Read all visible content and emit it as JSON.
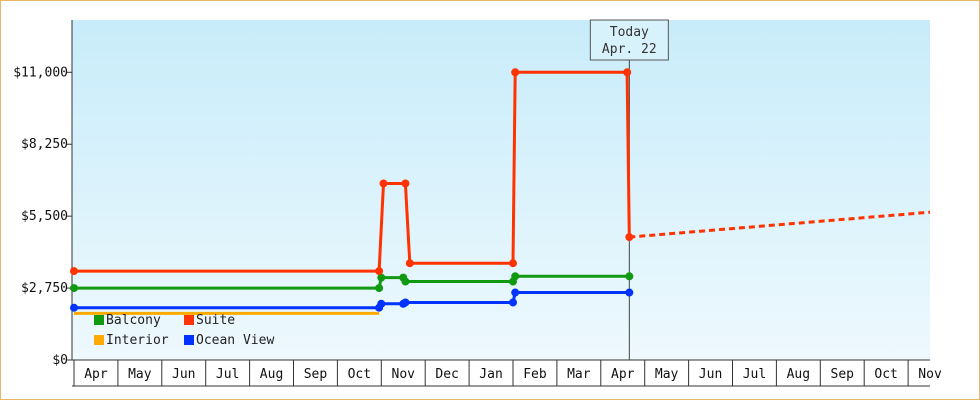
{
  "chart_data": {
    "type": "line",
    "title": "",
    "xlabel": "",
    "ylabel": "",
    "ylim": [
      0,
      13000
    ],
    "yticks": [
      {
        "value": 0,
        "label": "$0"
      },
      {
        "value": 2750,
        "label": "$2,750"
      },
      {
        "value": 5500,
        "label": "$5,500"
      },
      {
        "value": 8250,
        "label": "$8,250"
      },
      {
        "value": 11000,
        "label": "$11,000"
      }
    ],
    "xlim": [
      0,
      19.5
    ],
    "months": [
      "Apr",
      "May",
      "Jun",
      "Jul",
      "Aug",
      "Sep",
      "Oct",
      "Nov",
      "Dec",
      "Jan",
      "Feb",
      "Mar",
      "Apr",
      "May",
      "Jun",
      "Jul",
      "Aug",
      "Sep",
      "Oct",
      "Nov"
    ],
    "today": {
      "line1": "Today",
      "line2": "Apr. 22",
      "x": 12.65
    },
    "grid": false,
    "legend_position": "bottom-left",
    "series": [
      {
        "name": "Balcony",
        "color": "#119911",
        "points": [
          [
            0,
            2750
          ],
          [
            6.95,
            2750
          ],
          [
            7.0,
            3150
          ],
          [
            7.5,
            3150
          ],
          [
            7.55,
            3000
          ],
          [
            10.0,
            3000
          ],
          [
            10.05,
            3200
          ],
          [
            12.65,
            3200
          ]
        ],
        "markers": [
          [
            0,
            2750
          ],
          [
            6.95,
            2750
          ],
          [
            7.0,
            3150
          ],
          [
            7.5,
            3150
          ],
          [
            7.55,
            3000
          ],
          [
            10.0,
            3000
          ],
          [
            10.05,
            3200
          ],
          [
            12.65,
            3200
          ]
        ]
      },
      {
        "name": "Suite",
        "color": "#ff3300",
        "points": [
          [
            0,
            3400
          ],
          [
            6.95,
            3400
          ],
          [
            7.05,
            6750
          ],
          [
            7.55,
            6750
          ],
          [
            7.65,
            3700
          ],
          [
            10.0,
            3700
          ],
          [
            10.05,
            11000
          ],
          [
            12.6,
            11000
          ],
          [
            12.65,
            4700
          ]
        ],
        "markers": [
          [
            0,
            3400
          ],
          [
            6.95,
            3400
          ],
          [
            7.05,
            6750
          ],
          [
            7.55,
            6750
          ],
          [
            7.65,
            3700
          ],
          [
            10.0,
            3700
          ],
          [
            10.05,
            11000
          ],
          [
            12.6,
            11000
          ],
          [
            12.65,
            4700
          ]
        ],
        "forecast": [
          [
            12.65,
            4700
          ],
          [
            19.5,
            5650
          ]
        ]
      },
      {
        "name": "Interior",
        "color": "#ffaa00",
        "points": [
          [
            0,
            1780
          ],
          [
            6.95,
            1780
          ]
        ],
        "markers": []
      },
      {
        "name": "Ocean View",
        "color": "#0033ff",
        "points": [
          [
            0,
            2000
          ],
          [
            6.95,
            2000
          ],
          [
            7.0,
            2150
          ],
          [
            7.5,
            2150
          ],
          [
            7.55,
            2200
          ],
          [
            10.0,
            2200
          ],
          [
            10.05,
            2580
          ],
          [
            12.65,
            2580
          ]
        ],
        "markers": [
          [
            0,
            2000
          ],
          [
            6.95,
            2000
          ],
          [
            7.0,
            2150
          ],
          [
            7.5,
            2150
          ],
          [
            7.55,
            2200
          ],
          [
            10.0,
            2200
          ],
          [
            10.05,
            2580
          ],
          [
            12.65,
            2580
          ]
        ]
      }
    ]
  }
}
